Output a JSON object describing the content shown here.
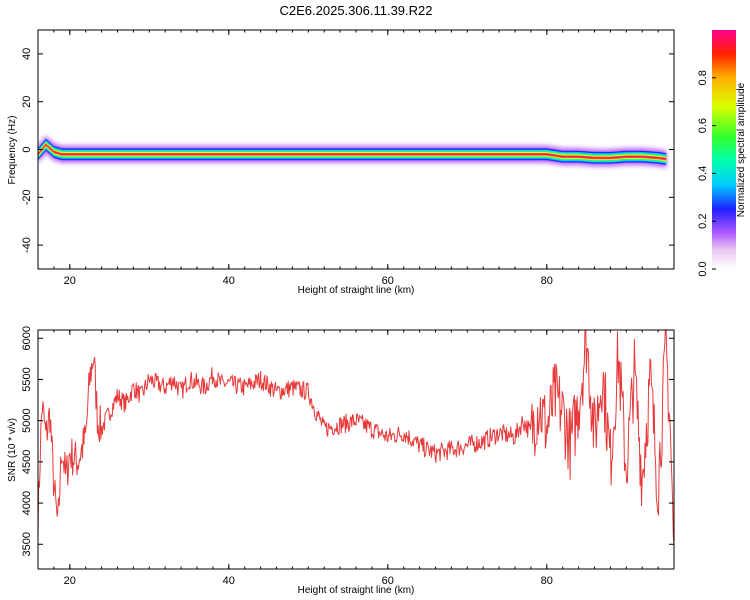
{
  "title": "C2E6.2025.306.11.39.R22",
  "chart_data": [
    {
      "type": "heatmap",
      "xlabel": "Height of straight line (km)",
      "ylabel": "Frequency (Hz)",
      "xlim": [
        16,
        96
      ],
      "ylim": [
        -50,
        50
      ],
      "xticks": [
        20,
        40,
        60,
        80
      ],
      "yticks": [
        40,
        20,
        0,
        -20,
        -40
      ],
      "colorbar": {
        "label": "Normalized spectral amplitude",
        "range": [
          0,
          1
        ],
        "ticks": [
          "0.0",
          "0.2",
          "0.4",
          "0.6",
          "0.8"
        ]
      },
      "ridge": {
        "x": [
          16,
          17,
          18,
          19,
          20,
          22,
          25,
          30,
          40,
          50,
          60,
          70,
          75,
          80,
          82,
          84,
          86,
          88,
          90,
          92,
          94,
          95
        ],
        "frequency": [
          -2,
          2,
          -1,
          -2,
          -2,
          -2,
          -2,
          -2,
          -2,
          -2,
          -2,
          -2,
          -2,
          -2,
          -3,
          -3,
          -3.5,
          -3.5,
          -3,
          -3,
          -3.5,
          -4
        ]
      }
    },
    {
      "type": "line",
      "xlabel": "Height of straight line (km)",
      "ylabel": "SNR (10 * v/v)",
      "xlim": [
        16,
        96
      ],
      "ylim": [
        3200,
        6100
      ],
      "xticks": [
        20,
        40,
        60,
        80
      ],
      "yticks": [
        3500,
        4000,
        4500,
        5000,
        5500,
        6000
      ],
      "color": "#e8393a",
      "series": [
        {
          "x": [
            16,
            16.5,
            17,
            17.5,
            18,
            18.5,
            19,
            19.5,
            20,
            21,
            22,
            22.5,
            23,
            23.5,
            24,
            25,
            26,
            27,
            28,
            29,
            30,
            31,
            32,
            33,
            34,
            35,
            36,
            37,
            38,
            39,
            40,
            42,
            44,
            46,
            48,
            50,
            51,
            52,
            54,
            56,
            58,
            60,
            62,
            64,
            66,
            68,
            70,
            72,
            74,
            76,
            77,
            78,
            79,
            80,
            81,
            82,
            83,
            84,
            85,
            86,
            87,
            88,
            89,
            90,
            91,
            92,
            93,
            94,
            95,
            95.5,
            96
          ],
          "y": [
            3800,
            5200,
            4800,
            5100,
            4200,
            3700,
            4700,
            4300,
            4600,
            4500,
            4800,
            5500,
            5800,
            5000,
            4900,
            5100,
            5300,
            5200,
            5400,
            5300,
            5500,
            5450,
            5400,
            5500,
            5350,
            5500,
            5450,
            5400,
            5550,
            5450,
            5450,
            5400,
            5500,
            5350,
            5400,
            5350,
            5100,
            4900,
            4950,
            5000,
            4900,
            4800,
            4850,
            4700,
            4600,
            4650,
            4700,
            4750,
            4850,
            4800,
            5000,
            4850,
            5200,
            4900,
            5300,
            5100,
            4700,
            5200,
            6000,
            4800,
            5600,
            4500,
            5800,
            4400,
            5600,
            4300,
            5500,
            4200,
            5900,
            5000,
            3300
          ]
        }
      ]
    }
  ]
}
